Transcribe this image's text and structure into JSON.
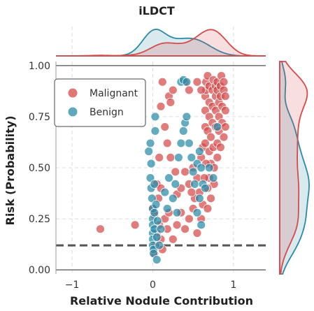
{
  "chart_data": {
    "type": "scatter",
    "title": "iLDCT",
    "xlabel": "Relative Nodule Contribution",
    "ylabel": "Risk (Probability)",
    "xlim": [
      -1.2,
      1.4
    ],
    "ylim": [
      -0.02,
      1.02
    ],
    "xticks": [
      -1,
      0,
      1
    ],
    "xtick_labels": [
      "−1",
      "0",
      "1"
    ],
    "yticks": [
      0.0,
      0.25,
      0.5,
      0.75,
      1.0
    ],
    "ytick_labels": [
      "0.00",
      "0.25",
      "0.50",
      "0.75",
      "1.00"
    ],
    "grid": true,
    "legend_placement": "upper-left",
    "reference_lines": {
      "solid_top_y": 1.0,
      "solid_bottom_y": 0.0,
      "dashed_threshold_y": 0.12
    },
    "colors": {
      "Malignant": "#d64a4a",
      "Benign": "#2a8aa8"
    },
    "series": [
      {
        "name": "Malignant",
        "points": [
          [
            -0.65,
            0.2
          ],
          [
            -0.22,
            0.22
          ],
          [
            0.02,
            0.27
          ],
          [
            0.05,
            0.42
          ],
          [
            0.08,
            0.55
          ],
          [
            0.1,
            0.8
          ],
          [
            0.12,
            0.92
          ],
          [
            0.2,
            0.85
          ],
          [
            0.22,
            0.82
          ],
          [
            0.0,
            0.3
          ],
          [
            0.03,
            0.12
          ],
          [
            0.1,
            0.15
          ],
          [
            0.12,
            0.1
          ],
          [
            0.18,
            0.2
          ],
          [
            0.25,
            0.15
          ],
          [
            0.3,
            0.22
          ],
          [
            0.35,
            0.28
          ],
          [
            0.4,
            0.2
          ],
          [
            0.45,
            0.25
          ],
          [
            0.5,
            0.3
          ],
          [
            0.3,
            0.37
          ],
          [
            0.35,
            0.4
          ],
          [
            0.4,
            0.48
          ],
          [
            0.45,
            0.42
          ],
          [
            0.5,
            0.5
          ],
          [
            0.55,
            0.45
          ],
          [
            0.58,
            0.38
          ],
          [
            0.6,
            0.55
          ],
          [
            0.62,
            0.6
          ],
          [
            0.62,
            0.32
          ],
          [
            0.65,
            0.62
          ],
          [
            0.65,
            0.7
          ],
          [
            0.65,
            0.78
          ],
          [
            0.65,
            0.85
          ],
          [
            0.66,
            0.88
          ],
          [
            0.66,
            0.92
          ],
          [
            0.68,
            0.95
          ],
          [
            0.68,
            0.68
          ],
          [
            0.7,
            0.58
          ],
          [
            0.7,
            0.45
          ],
          [
            0.7,
            0.75
          ],
          [
            0.7,
            0.82
          ],
          [
            0.7,
            0.9
          ],
          [
            0.72,
            0.65
          ],
          [
            0.72,
            0.52
          ],
          [
            0.72,
            0.35
          ],
          [
            0.74,
            0.72
          ],
          [
            0.74,
            0.8
          ],
          [
            0.74,
            0.88
          ],
          [
            0.75,
            0.93
          ],
          [
            0.75,
            0.6
          ],
          [
            0.76,
            0.42
          ],
          [
            0.76,
            0.5
          ],
          [
            0.78,
            0.85
          ],
          [
            0.78,
            0.9
          ],
          [
            0.78,
            0.7
          ],
          [
            0.78,
            0.78
          ],
          [
            0.8,
            0.62
          ],
          [
            0.8,
            0.55
          ],
          [
            0.8,
            0.88
          ],
          [
            0.8,
            0.92
          ],
          [
            0.82,
            0.75
          ],
          [
            0.82,
            0.82
          ],
          [
            0.82,
            0.68
          ],
          [
            0.84,
            0.9
          ],
          [
            0.84,
            0.85
          ],
          [
            0.84,
            0.6
          ],
          [
            0.85,
            0.95
          ],
          [
            0.86,
            0.72
          ],
          [
            0.86,
            0.8
          ],
          [
            0.88,
            0.88
          ],
          [
            0.88,
            0.92
          ],
          [
            0.88,
            0.65
          ],
          [
            0.9,
            0.78
          ],
          [
            0.9,
            0.7
          ],
          [
            0.9,
            0.85
          ],
          [
            0.66,
            0.52
          ],
          [
            0.64,
            0.45
          ],
          [
            0.68,
            0.4
          ],
          [
            0.68,
            0.3
          ],
          [
            0.55,
            0.18
          ],
          [
            0.6,
            0.25
          ],
          [
            0.52,
            0.35
          ],
          [
            0.48,
            0.38
          ],
          [
            0.28,
            0.48
          ],
          [
            0.22,
            0.55
          ],
          [
            0.18,
            0.62
          ],
          [
            0.15,
            0.7
          ],
          [
            0.25,
            0.88
          ],
          [
            0.4,
            0.92
          ],
          [
            0.45,
            0.88
          ],
          [
            0.55,
            0.92
          ],
          [
            0.6,
            0.88
          ],
          [
            0.05,
            0.18
          ],
          [
            0.08,
            0.22
          ],
          [
            0.15,
            0.25
          ],
          [
            0.2,
            0.28
          ],
          [
            0.02,
            0.08
          ],
          [
            0.07,
            0.35
          ],
          [
            0.1,
            0.4
          ]
        ]
      },
      {
        "name": "Benign",
        "points": [
          [
            -0.05,
            0.58
          ],
          [
            -0.03,
            0.62
          ],
          [
            -0.02,
            0.52
          ],
          [
            -0.03,
            0.45
          ],
          [
            -0.02,
            0.4
          ],
          [
            -0.01,
            0.35
          ],
          [
            0.0,
            0.3
          ],
          [
            0.0,
            0.25
          ],
          [
            0.0,
            0.22
          ],
          [
            0.0,
            0.18
          ],
          [
            0.0,
            0.15
          ],
          [
            0.0,
            0.12
          ],
          [
            0.01,
            0.1
          ],
          [
            0.01,
            0.08
          ],
          [
            0.02,
            0.2
          ],
          [
            0.02,
            0.28
          ],
          [
            0.02,
            0.42
          ],
          [
            0.03,
            0.68
          ],
          [
            0.03,
            0.75
          ],
          [
            0.04,
            0.32
          ],
          [
            0.05,
            0.16
          ],
          [
            0.06,
            0.24
          ],
          [
            0.08,
            0.12
          ],
          [
            0.1,
            0.2
          ],
          [
            0.15,
            0.38
          ],
          [
            0.18,
            0.3
          ],
          [
            0.2,
            0.45
          ],
          [
            0.25,
            0.35
          ],
          [
            0.28,
            0.42
          ],
          [
            0.3,
            0.28
          ],
          [
            0.32,
            0.55
          ],
          [
            0.35,
            0.62
          ],
          [
            0.38,
            0.68
          ],
          [
            0.4,
            0.72
          ],
          [
            0.42,
            0.75
          ],
          [
            0.35,
            0.92
          ],
          [
            0.38,
            0.93
          ],
          [
            0.42,
            0.92
          ],
          [
            0.45,
            0.62
          ],
          [
            0.48,
            0.55
          ],
          [
            0.5,
            0.48
          ],
          [
            0.52,
            0.42
          ],
          [
            0.55,
            0.52
          ],
          [
            0.58,
            0.58
          ],
          [
            0.6,
            0.5
          ],
          [
            0.62,
            0.42
          ],
          [
            0.58,
            0.35
          ],
          [
            0.55,
            0.28
          ],
          [
            0.6,
            0.22
          ],
          [
            0.65,
            0.4
          ],
          [
            0.7,
            0.5
          ],
          [
            0.75,
            0.45
          ],
          [
            0.8,
            0.7
          ],
          [
            0.05,
            0.05
          ]
        ]
      }
    ],
    "marginal_x": {
      "Malignant": "density peaks near 0.8",
      "Benign": "density peaks near 0.0"
    },
    "marginal_y": {
      "Malignant": "density peaks near 0.85",
      "Benign": "density peaks near 0.25"
    }
  }
}
